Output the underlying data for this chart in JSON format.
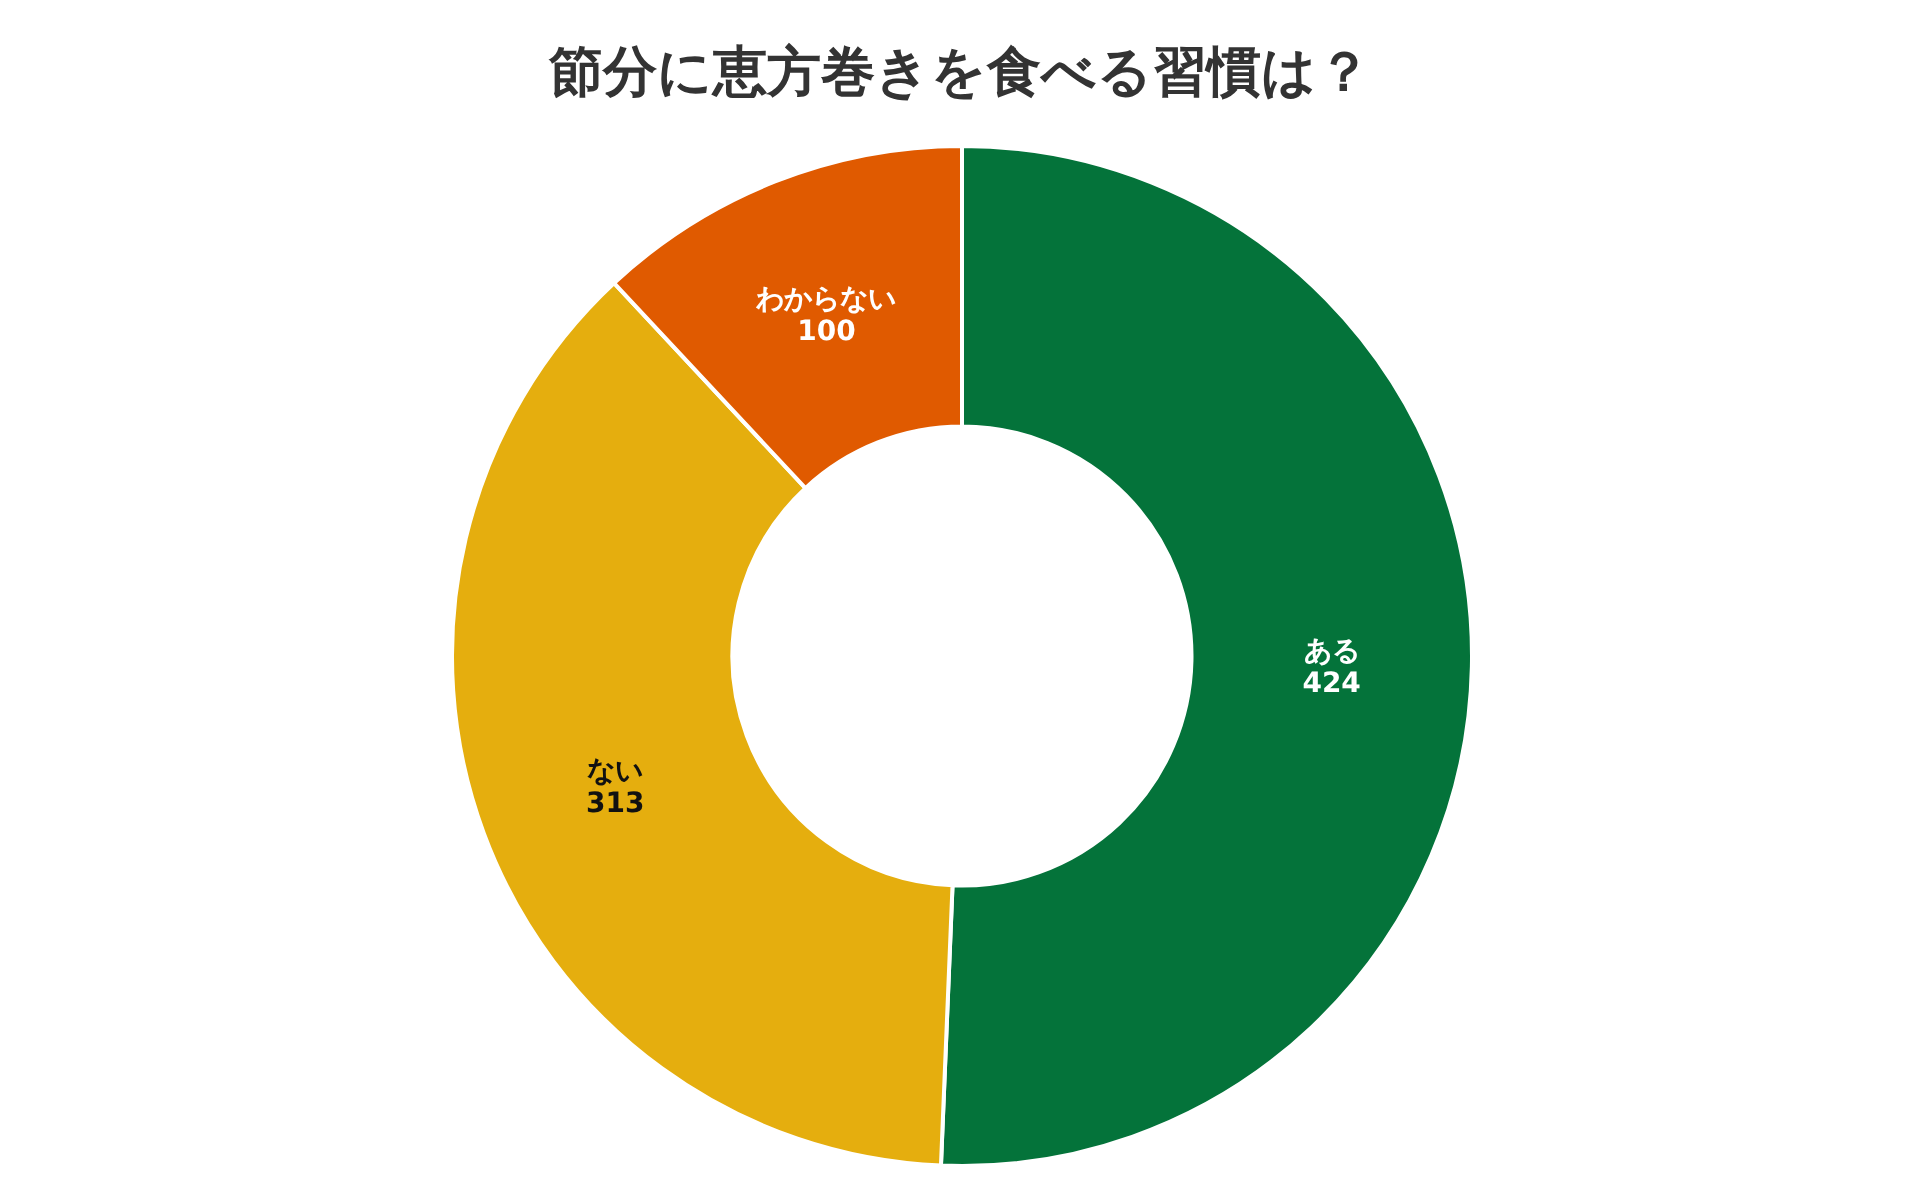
{
  "chart_data": {
    "type": "donut",
    "title": "節分に恵方巻きを食べる習慣は？",
    "categories": [
      "ある",
      "ない",
      "わからない"
    ],
    "values": [
      424,
      313,
      100
    ],
    "colors": [
      "#04733a",
      "#e5ae0e",
      "#e05a00"
    ],
    "data_labels": true
  }
}
